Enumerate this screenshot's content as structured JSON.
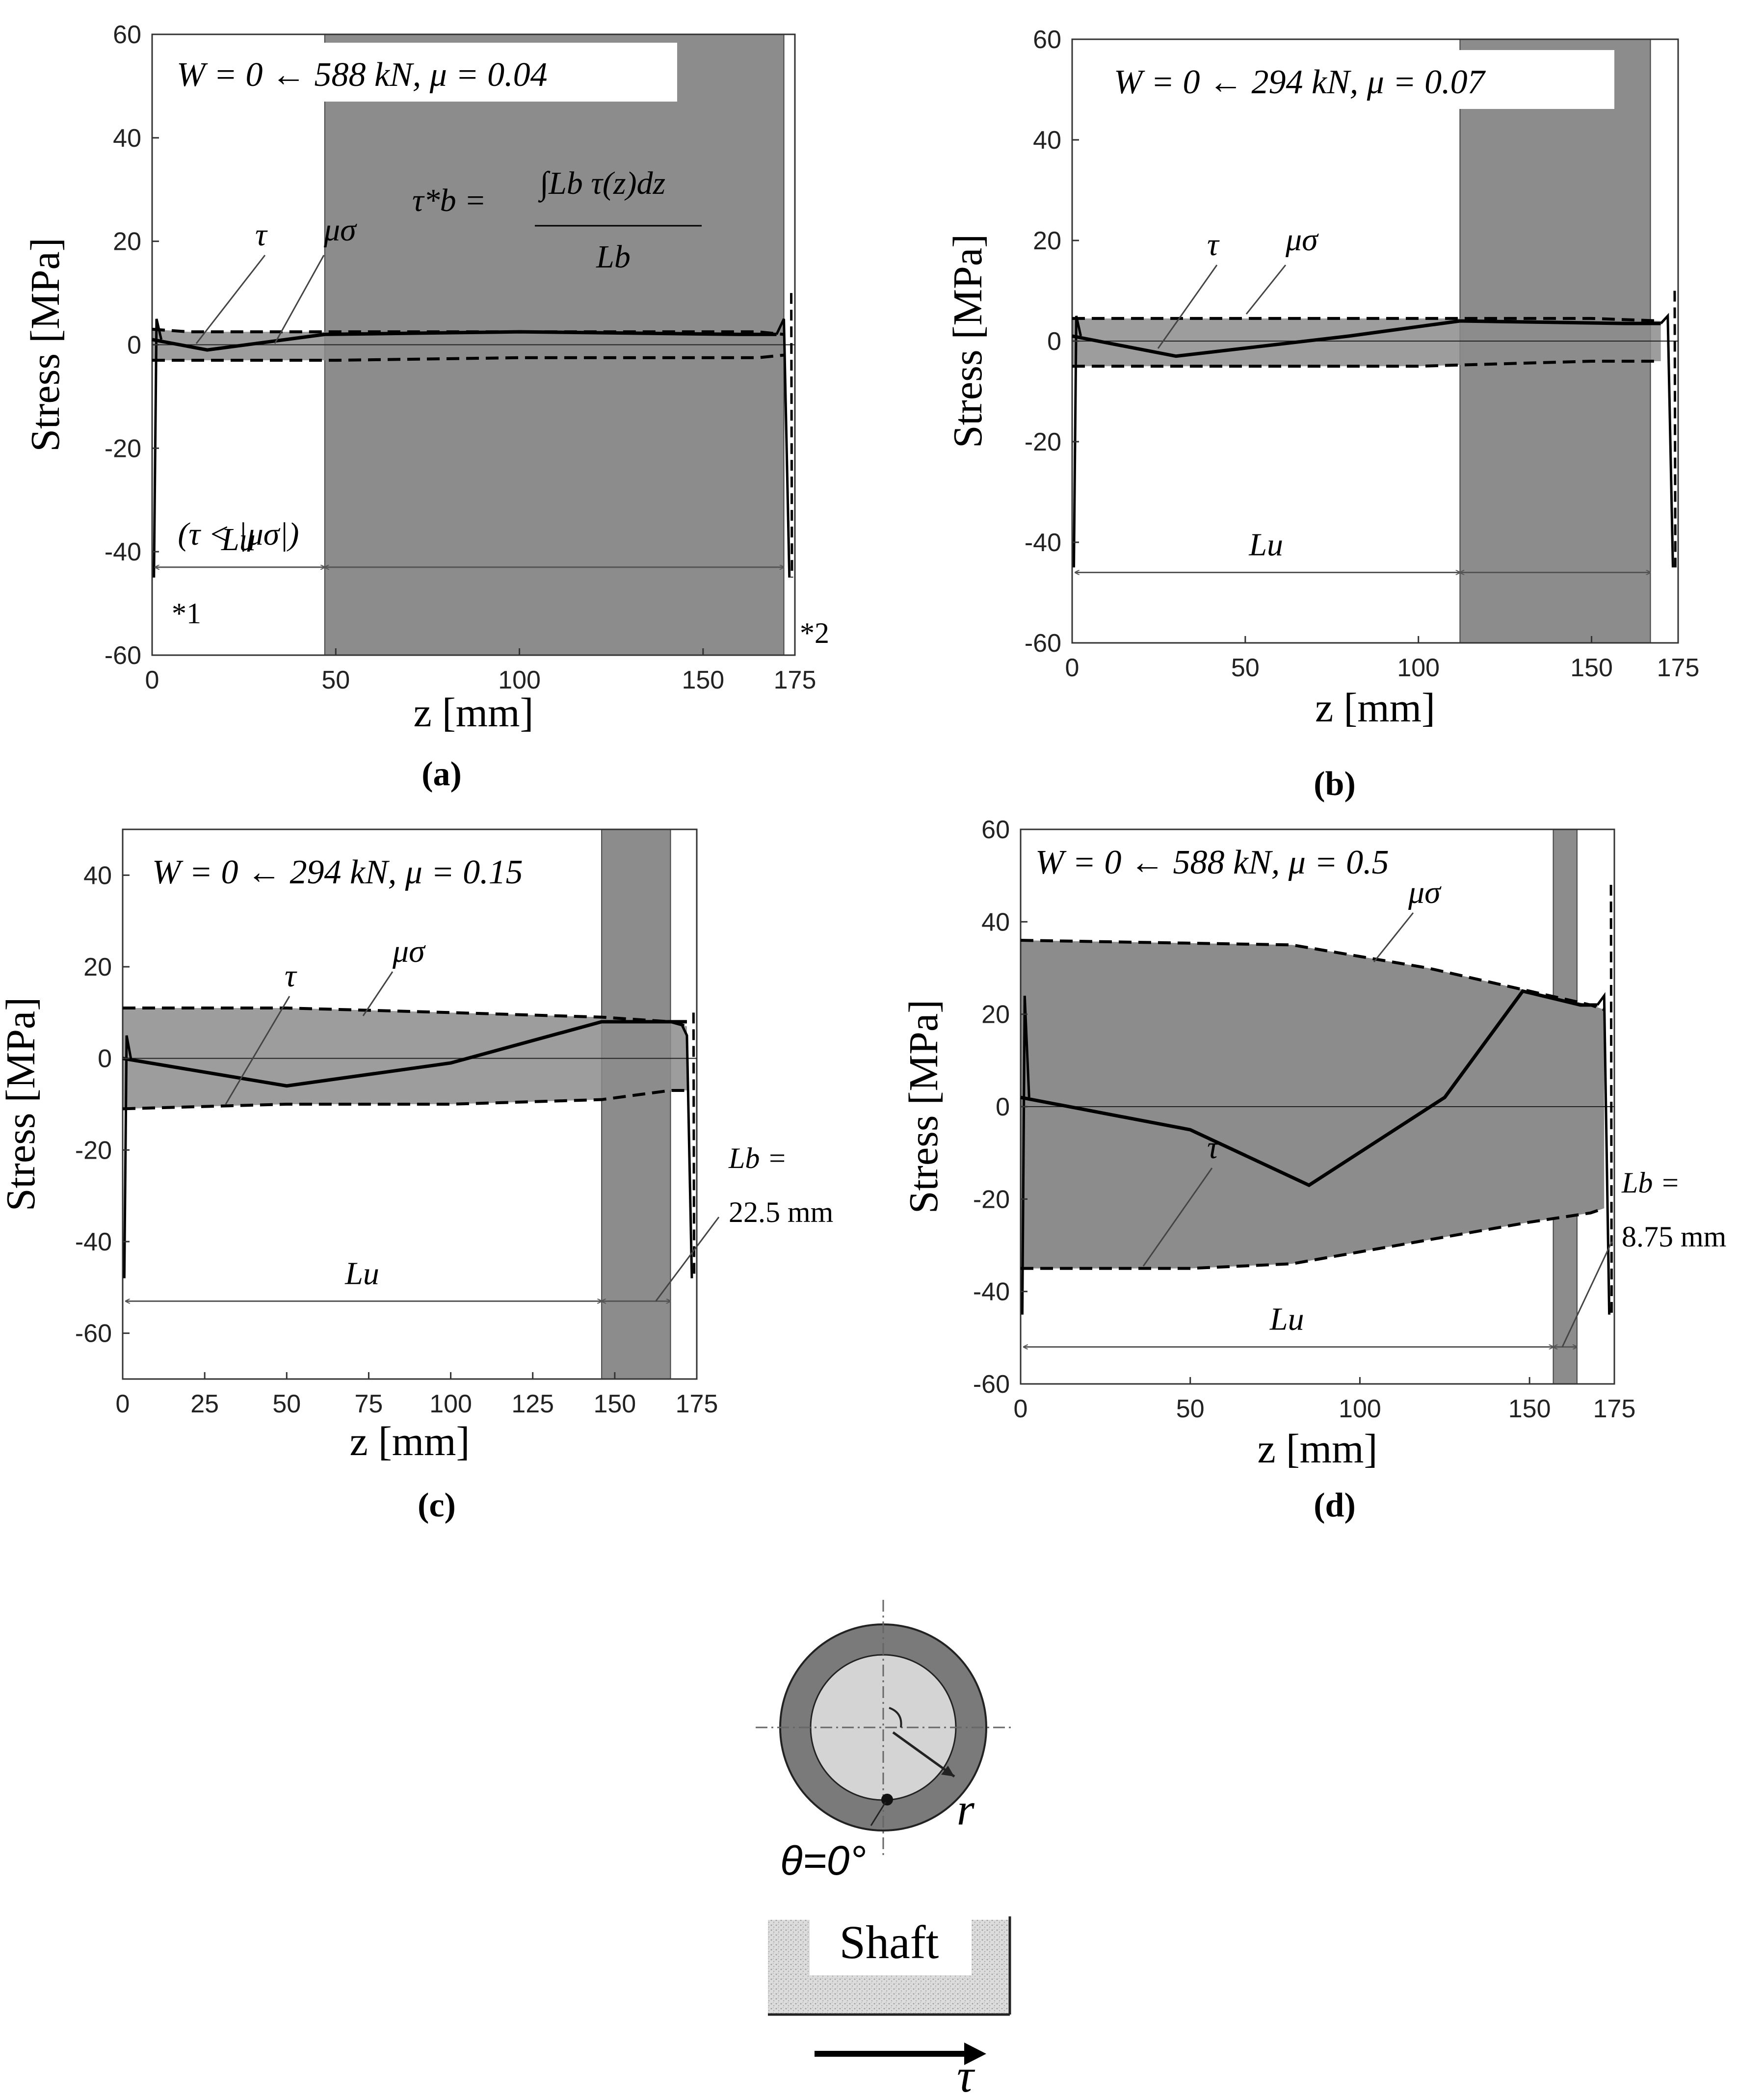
{
  "chart_data": [
    {
      "id": "a",
      "type": "line",
      "caption": "(a)",
      "title": "W = 0 ← 588  kN,  μ = 0.04",
      "xlabel": "z [mm]",
      "ylabel": "Stress [MPa]",
      "xlim": [
        0,
        175
      ],
      "ylim": [
        -60,
        60
      ],
      "xticks": [
        0,
        50,
        100,
        150,
        175
      ],
      "yticks": [
        60,
        40,
        20,
        0,
        -20,
        -40,
        -60
      ],
      "band": [
        47,
        172
      ],
      "mu_sigma_upper": [
        [
          0,
          3
        ],
        [
          10,
          2.5
        ],
        [
          50,
          2.5
        ],
        [
          100,
          2.5
        ],
        [
          165,
          2.5
        ],
        [
          172,
          2
        ]
      ],
      "mu_sigma_lower": [
        [
          0,
          -3
        ],
        [
          10,
          -3
        ],
        [
          50,
          -3
        ],
        [
          100,
          -2.5
        ],
        [
          165,
          -2.5
        ],
        [
          172,
          -2
        ]
      ],
      "tau": [
        [
          0,
          1
        ],
        [
          15,
          -1
        ],
        [
          47,
          2
        ],
        [
          100,
          2.5
        ],
        [
          160,
          2
        ],
        [
          170,
          2
        ]
      ],
      "annotations": {
        "tau": "τ",
        "mu_sigma": "μσ",
        "formula_lhs": "τ*b =",
        "formula_num": "∫Lb τ(z)dz",
        "formula_den": "Lb",
        "lu": "Lu",
        "lu_cond": "(τ < |μσ|)",
        "note1": "*1",
        "note2": "*2"
      }
    },
    {
      "id": "b",
      "type": "line",
      "caption": "(b)",
      "title": "W = 0 ← 294  kN,  μ = 0.07",
      "xlabel": "z [mm]",
      "ylabel": "Stress [MPa]",
      "xlim": [
        0,
        175
      ],
      "ylim": [
        -60,
        60
      ],
      "xticks": [
        0,
        50,
        100,
        150,
        175
      ],
      "yticks": [
        60,
        40,
        20,
        0,
        -20,
        -40,
        -60
      ],
      "band": [
        112,
        167
      ],
      "mu_sigma_upper": [
        [
          0,
          4.5
        ],
        [
          50,
          4.5
        ],
        [
          100,
          4.5
        ],
        [
          150,
          4.5
        ],
        [
          170,
          4
        ]
      ],
      "mu_sigma_lower": [
        [
          0,
          -5
        ],
        [
          50,
          -5
        ],
        [
          100,
          -5
        ],
        [
          150,
          -4
        ],
        [
          170,
          -4
        ]
      ],
      "tau": [
        [
          0,
          1
        ],
        [
          30,
          -3
        ],
        [
          80,
          1
        ],
        [
          112,
          4
        ],
        [
          160,
          3.5
        ],
        [
          170,
          3.5
        ]
      ],
      "annotations": {
        "tau": "τ",
        "mu_sigma": "μσ",
        "lu": "Lu"
      }
    },
    {
      "id": "c",
      "type": "line",
      "caption": "(c)",
      "title": "W = 0 ← 294  kN,  μ = 0.15",
      "xlabel": "z [mm]",
      "ylabel": "Stress [MPa]",
      "xlim": [
        0,
        175
      ],
      "ylim": [
        -70,
        50
      ],
      "xticks": [
        0,
        25,
        50,
        75,
        100,
        125,
        150,
        175
      ],
      "yticks": [
        40,
        20,
        0,
        -20,
        -40,
        -60
      ],
      "band": [
        146,
        167
      ],
      "mu_sigma_upper": [
        [
          0,
          11
        ],
        [
          50,
          11
        ],
        [
          100,
          10
        ],
        [
          146,
          9
        ],
        [
          167,
          8
        ],
        [
          172,
          7
        ]
      ],
      "mu_sigma_lower": [
        [
          0,
          -11
        ],
        [
          50,
          -10
        ],
        [
          100,
          -10
        ],
        [
          146,
          -9
        ],
        [
          167,
          -7
        ],
        [
          172,
          -7
        ]
      ],
      "tau": [
        [
          0,
          0
        ],
        [
          50,
          -6
        ],
        [
          100,
          -1
        ],
        [
          146,
          8
        ],
        [
          165,
          8
        ],
        [
          172,
          8
        ]
      ],
      "annotations": {
        "tau": "τ",
        "mu_sigma": "μσ",
        "lu": "Lu",
        "lb_label": "Lb =",
        "lb_value": "22.5  mm"
      }
    },
    {
      "id": "d",
      "type": "line",
      "caption": "(d)",
      "title": "W = 0 ← 588  kN,  μ = 0.5",
      "xlabel": "z [mm]",
      "ylabel": "Stress [MPa]",
      "xlim": [
        0,
        175
      ],
      "ylim": [
        -60,
        60
      ],
      "xticks": [
        0,
        50,
        100,
        150,
        175
      ],
      "yticks": [
        60,
        40,
        20,
        0,
        -20,
        -40,
        -60
      ],
      "band": [
        157,
        164
      ],
      "mu_sigma_upper": [
        [
          0,
          36
        ],
        [
          80,
          35
        ],
        [
          120,
          30
        ],
        [
          150,
          25
        ],
        [
          168,
          22
        ],
        [
          172,
          21
        ]
      ],
      "mu_sigma_lower": [
        [
          0,
          -35
        ],
        [
          50,
          -35
        ],
        [
          80,
          -34
        ],
        [
          150,
          -25
        ],
        [
          168,
          -23
        ],
        [
          172,
          -22
        ]
      ],
      "tau": [
        [
          0,
          2
        ],
        [
          50,
          -5
        ],
        [
          85,
          -17
        ],
        [
          125,
          2
        ],
        [
          148,
          25
        ],
        [
          165,
          22
        ],
        [
          170,
          22
        ]
      ],
      "annotations": {
        "tau": "τ",
        "mu_sigma": "μσ",
        "lu": "Lu",
        "lb_label": "Lb =",
        "lb_value": "8.75  mm"
      }
    }
  ],
  "diagram": {
    "radius_label": "r",
    "angle_label": "θ=0°",
    "shaft_label": "Shaft",
    "arrow_label": "τ"
  },
  "colors": {
    "band": "#8c8c8c",
    "region": "#8c8c8c",
    "outer_ring": "#7a7a7a",
    "inner_disk": "#d4d4d4"
  }
}
